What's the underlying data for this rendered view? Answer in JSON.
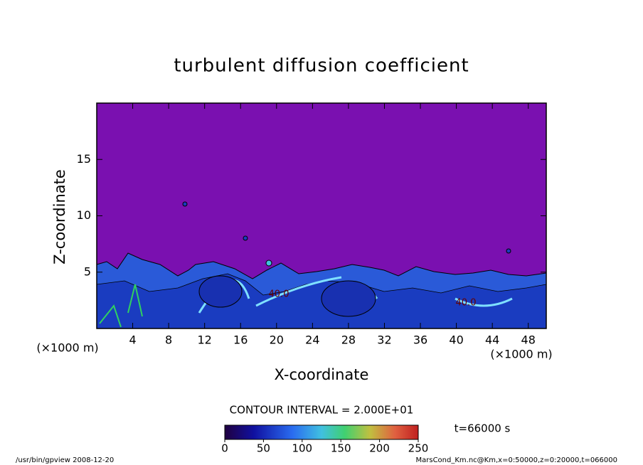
{
  "chart_data": {
    "type": "contour",
    "title": "turbulent diffusion coefficient",
    "x_label": "X-coordinate",
    "y_label": "Z-coordinate",
    "x_unit": "(×1000 m)",
    "y_unit": "(×1000 m)",
    "xlim": [
      0,
      50
    ],
    "xticks": [
      4,
      8,
      12,
      16,
      20,
      24,
      28,
      32,
      36,
      40,
      44,
      48
    ],
    "ylim": [
      0,
      20
    ],
    "yticks": [
      5,
      10,
      15
    ],
    "contour_interval": "CONTOUR INTERVAL = 2.000E+01",
    "contour_labels": [
      "40.0",
      "40.0"
    ],
    "colorbar_lim": [
      0,
      250
    ],
    "colorbar_ticks": [
      0,
      50,
      100,
      150,
      200,
      250
    ],
    "time_label": "t=66000 s",
    "footer_left": "/usr/bin/gpview  2008-12-20",
    "footer_right": "MarsCond_Km.nc@Km,x=0:50000,z=0:20000,t=066000"
  }
}
